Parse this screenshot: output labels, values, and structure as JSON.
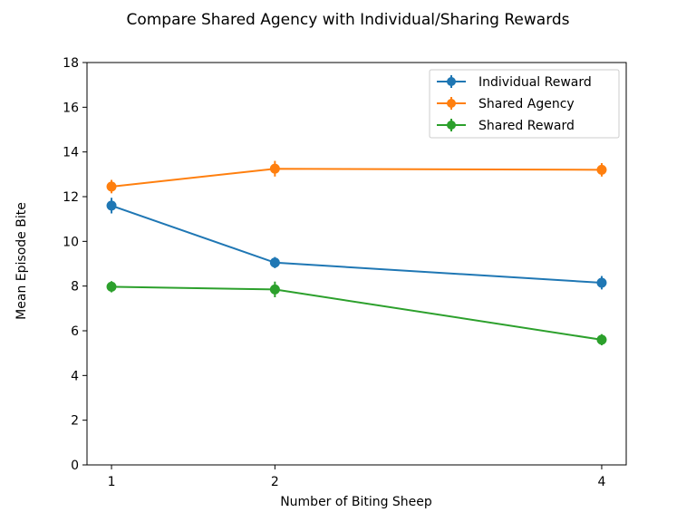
{
  "chart_data": {
    "type": "line",
    "title": "Compare Shared Agency with Individual/Sharing Rewards",
    "xlabel": "Number of Biting Sheep",
    "ylabel": "Mean Episode Bite",
    "x": [
      1,
      2,
      4
    ],
    "xticks": [
      "1",
      "2",
      "4"
    ],
    "xlim": [
      0.85,
      4.15
    ],
    "ylim": [
      0,
      18
    ],
    "yticks": [
      "0",
      "2",
      "4",
      "6",
      "8",
      "10",
      "12",
      "14",
      "16",
      "18"
    ],
    "grid": false,
    "legend_position": "top-right",
    "series": [
      {
        "name": "Individual Reward",
        "color": "#1f77b4",
        "values": [
          11.6,
          9.05,
          8.15
        ],
        "errors": [
          0.35,
          0.25,
          0.3
        ]
      },
      {
        "name": "Shared Agency",
        "color": "#ff7f0e",
        "values": [
          12.45,
          13.25,
          13.2
        ],
        "errors": [
          0.3,
          0.35,
          0.3
        ]
      },
      {
        "name": "Shared Reward",
        "color": "#2ca02c",
        "values": [
          7.97,
          7.85,
          5.6
        ],
        "errors": [
          0.25,
          0.35,
          0.25
        ]
      }
    ]
  }
}
